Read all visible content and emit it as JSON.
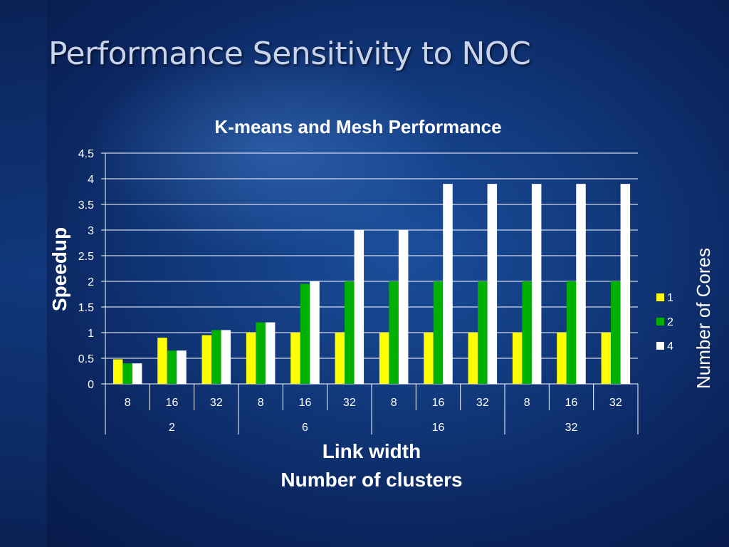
{
  "slide": {
    "title": "Performance Sensitivity to NOC"
  },
  "chart_data": {
    "type": "bar",
    "title": "K-means and Mesh Performance",
    "ylabel": "Speedup",
    "xlabel": [
      "Link width",
      "Number of clusters"
    ],
    "ylim": [
      0,
      4.5
    ],
    "yticks": [
      "0",
      "0.5",
      "1",
      "1.5",
      "2",
      "2.5",
      "3",
      "3.5",
      "4",
      "4.5"
    ],
    "grid": true,
    "categories": [
      "8",
      "16",
      "32",
      "8",
      "16",
      "32",
      "8",
      "16",
      "32",
      "8",
      "16",
      "32"
    ],
    "groups": [
      {
        "label": "2",
        "count": 3
      },
      {
        "label": "6",
        "count": 3
      },
      {
        "label": "16",
        "count": 3
      },
      {
        "label": "32",
        "count": 3
      }
    ],
    "legend_title": "Number of Cores",
    "legend_position": "right",
    "series": [
      {
        "name": "1",
        "color": "#ffff00",
        "values": [
          0.48,
          0.9,
          0.95,
          1.0,
          1.0,
          1.0,
          1.0,
          1.0,
          1.0,
          1.0,
          1.0,
          1.0
        ]
      },
      {
        "name": "2",
        "color": "#00b000",
        "values": [
          0.4,
          0.65,
          1.05,
          1.2,
          1.95,
          2.0,
          2.0,
          2.0,
          2.0,
          2.0,
          2.0,
          2.0
        ]
      },
      {
        "name": "4",
        "color": "#ffffff",
        "values": [
          0.4,
          0.65,
          1.05,
          1.2,
          2.0,
          3.0,
          3.0,
          3.9,
          3.9,
          3.9,
          3.9,
          3.9
        ]
      }
    ]
  }
}
